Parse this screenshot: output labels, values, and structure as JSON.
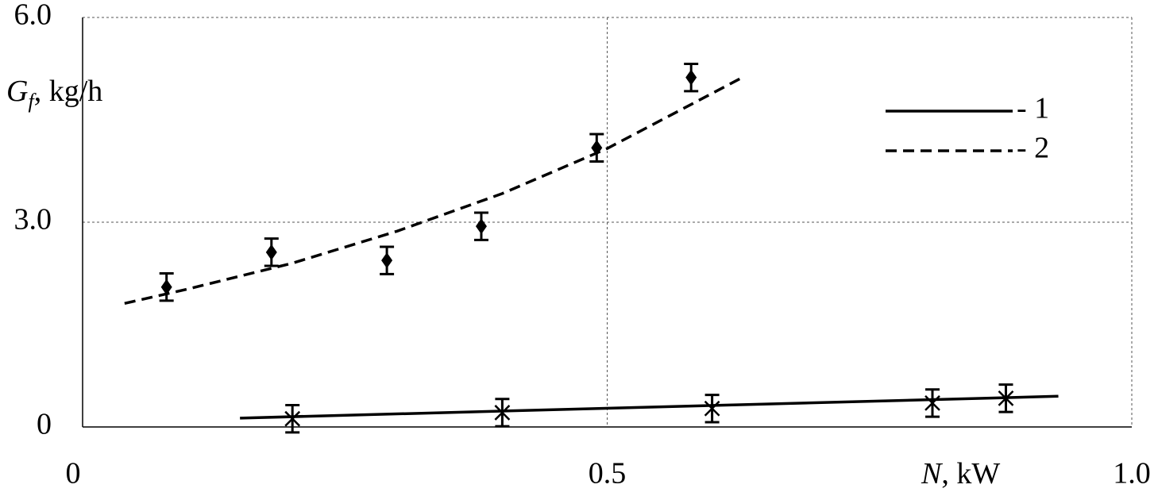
{
  "chart_data": {
    "type": "scatter",
    "x_label": {
      "symbol": "N",
      "unit": ", kW"
    },
    "y_label": {
      "symbol": "G",
      "subscript": "f",
      "unit": ", kg/h"
    },
    "xlim": [
      0,
      1
    ],
    "xticks": [
      0,
      0.5,
      {
        "value": 1,
        "label": "1.0"
      }
    ],
    "ylim": [
      0,
      6
    ],
    "yticks": [
      0,
      {
        "value": 3,
        "label": "3.0"
      },
      {
        "value": 6,
        "label": "6.0"
      }
    ],
    "grid": true,
    "legend": "upper right",
    "series": [
      {
        "name": "- 1",
        "color": "#000000",
        "marker": "asterisk",
        "line": "solid",
        "x": [
          0.2,
          0.4,
          0.6,
          0.81,
          0.88
        ],
        "values": [
          0.12,
          0.21,
          0.27,
          0.35,
          0.42
        ],
        "errors": [
          0.2,
          0.2,
          0.2,
          0.2,
          0.2
        ],
        "fit_x": [
          0.15,
          0.93
        ],
        "fit_values": [
          0.13,
          0.45
        ]
      },
      {
        "name": "- 2",
        "color": "#000000",
        "marker": "diamond",
        "line": "dashed",
        "x": [
          0.08,
          0.18,
          0.29,
          0.38,
          0.49,
          0.58
        ],
        "values": [
          2.05,
          2.56,
          2.44,
          2.94,
          4.09,
          5.12
        ],
        "errors": [
          0.2,
          0.2,
          0.2,
          0.2,
          0.2,
          0.2
        ],
        "fit_x": [
          0.04,
          0.1,
          0.2,
          0.3,
          0.4,
          0.5,
          0.63
        ],
        "fit_values": [
          1.81,
          2.02,
          2.4,
          2.87,
          3.42,
          4.08,
          5.13
        ]
      }
    ]
  }
}
